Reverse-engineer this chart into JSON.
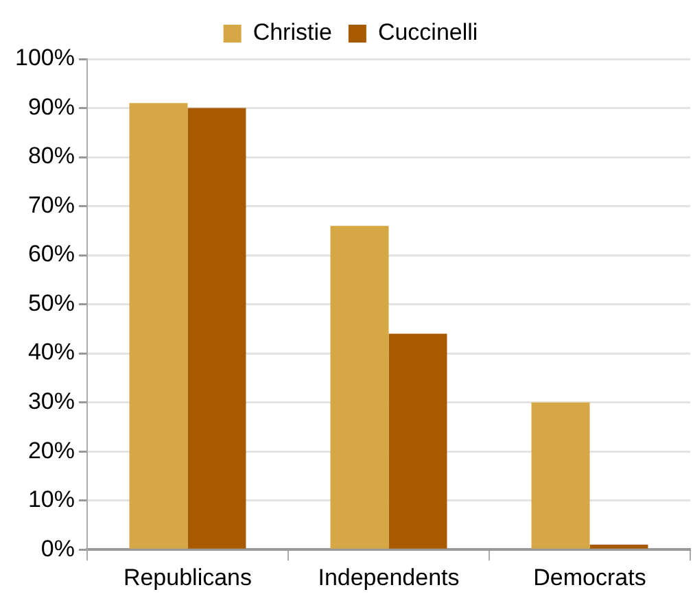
{
  "chart_data": {
    "type": "bar",
    "categories": [
      "Republicans",
      "Independents",
      "Democrats"
    ],
    "series": [
      {
        "name": "Christie",
        "color": "#d6a845",
        "values": [
          91,
          66,
          30
        ]
      },
      {
        "name": "Cuccinelli",
        "color": "#a85a00",
        "values": [
          90,
          44,
          1
        ]
      }
    ],
    "ylim": [
      0,
      100
    ],
    "yticks": [
      {
        "value": 0,
        "label": "0%"
      },
      {
        "value": 10,
        "label": "10%"
      },
      {
        "value": 20,
        "label": "20%"
      },
      {
        "value": 30,
        "label": "30%"
      },
      {
        "value": 40,
        "label": "40%"
      },
      {
        "value": 50,
        "label": "50%"
      },
      {
        "value": 60,
        "label": "60%"
      },
      {
        "value": 70,
        "label": "70%"
      },
      {
        "value": 80,
        "label": "80%"
      },
      {
        "value": 90,
        "label": "90%"
      },
      {
        "value": 100,
        "label": "100%"
      }
    ],
    "grid": "y",
    "legend": "top"
  }
}
